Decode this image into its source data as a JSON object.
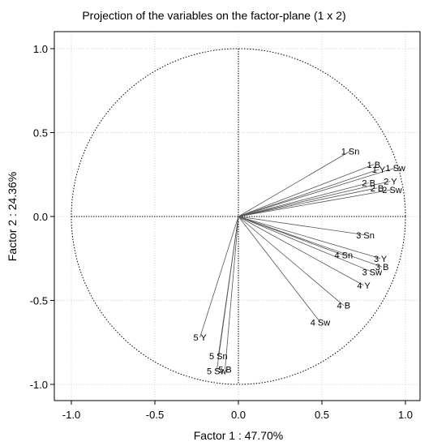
{
  "chart_data": {
    "type": "scatter",
    "title": "Projection of the variables on the factor-plane (1 x 2)",
    "xlabel": "Factor 1 : 47.70%",
    "ylabel": "Factor 2 : 24.36%",
    "xlim": [
      -1.0,
      1.0
    ],
    "ylim": [
      -1.0,
      1.0
    ],
    "x_ticks": [
      "-1.0",
      "-0.5",
      "0.0",
      "0.5",
      "1.0"
    ],
    "y_ticks": [
      "1.0",
      "0.5",
      "0.0",
      "-0.5",
      "-1.0"
    ],
    "grid": true,
    "unit_circle": true,
    "points": [
      {
        "label": "1 Sn",
        "x": 0.67,
        "y": 0.39
      },
      {
        "label": "1 B",
        "x": 0.81,
        "y": 0.31
      },
      {
        "label": "1 Y",
        "x": 0.84,
        "y": 0.28
      },
      {
        "label": "1 Sw",
        "x": 0.94,
        "y": 0.29
      },
      {
        "label": "2 B",
        "x": 0.78,
        "y": 0.2
      },
      {
        "label": "2 Y",
        "x": 0.91,
        "y": 0.21
      },
      {
        "label": "2 B",
        "x": 0.83,
        "y": 0.17
      },
      {
        "label": "2 Sw",
        "x": 0.92,
        "y": 0.16
      },
      {
        "label": "3 Sn",
        "x": 0.76,
        "y": -0.11
      },
      {
        "label": "4 Sn",
        "x": 0.63,
        "y": -0.23
      },
      {
        "label": "3 Y",
        "x": 0.85,
        "y": -0.25
      },
      {
        "label": "3 B",
        "x": 0.86,
        "y": -0.3
      },
      {
        "label": "3 Sw",
        "x": 0.8,
        "y": -0.33
      },
      {
        "label": "4 Y",
        "x": 0.75,
        "y": -0.41
      },
      {
        "label": "4 B",
        "x": 0.63,
        "y": -0.53
      },
      {
        "label": "4 Sw",
        "x": 0.49,
        "y": -0.63
      },
      {
        "label": "5 Y",
        "x": -0.23,
        "y": -0.72
      },
      {
        "label": "5 Sn",
        "x": -0.12,
        "y": -0.83
      },
      {
        "label": "5 Sw",
        "x": -0.13,
        "y": -0.92
      },
      {
        "label": "5 B",
        "x": -0.08,
        "y": -0.91
      }
    ]
  }
}
